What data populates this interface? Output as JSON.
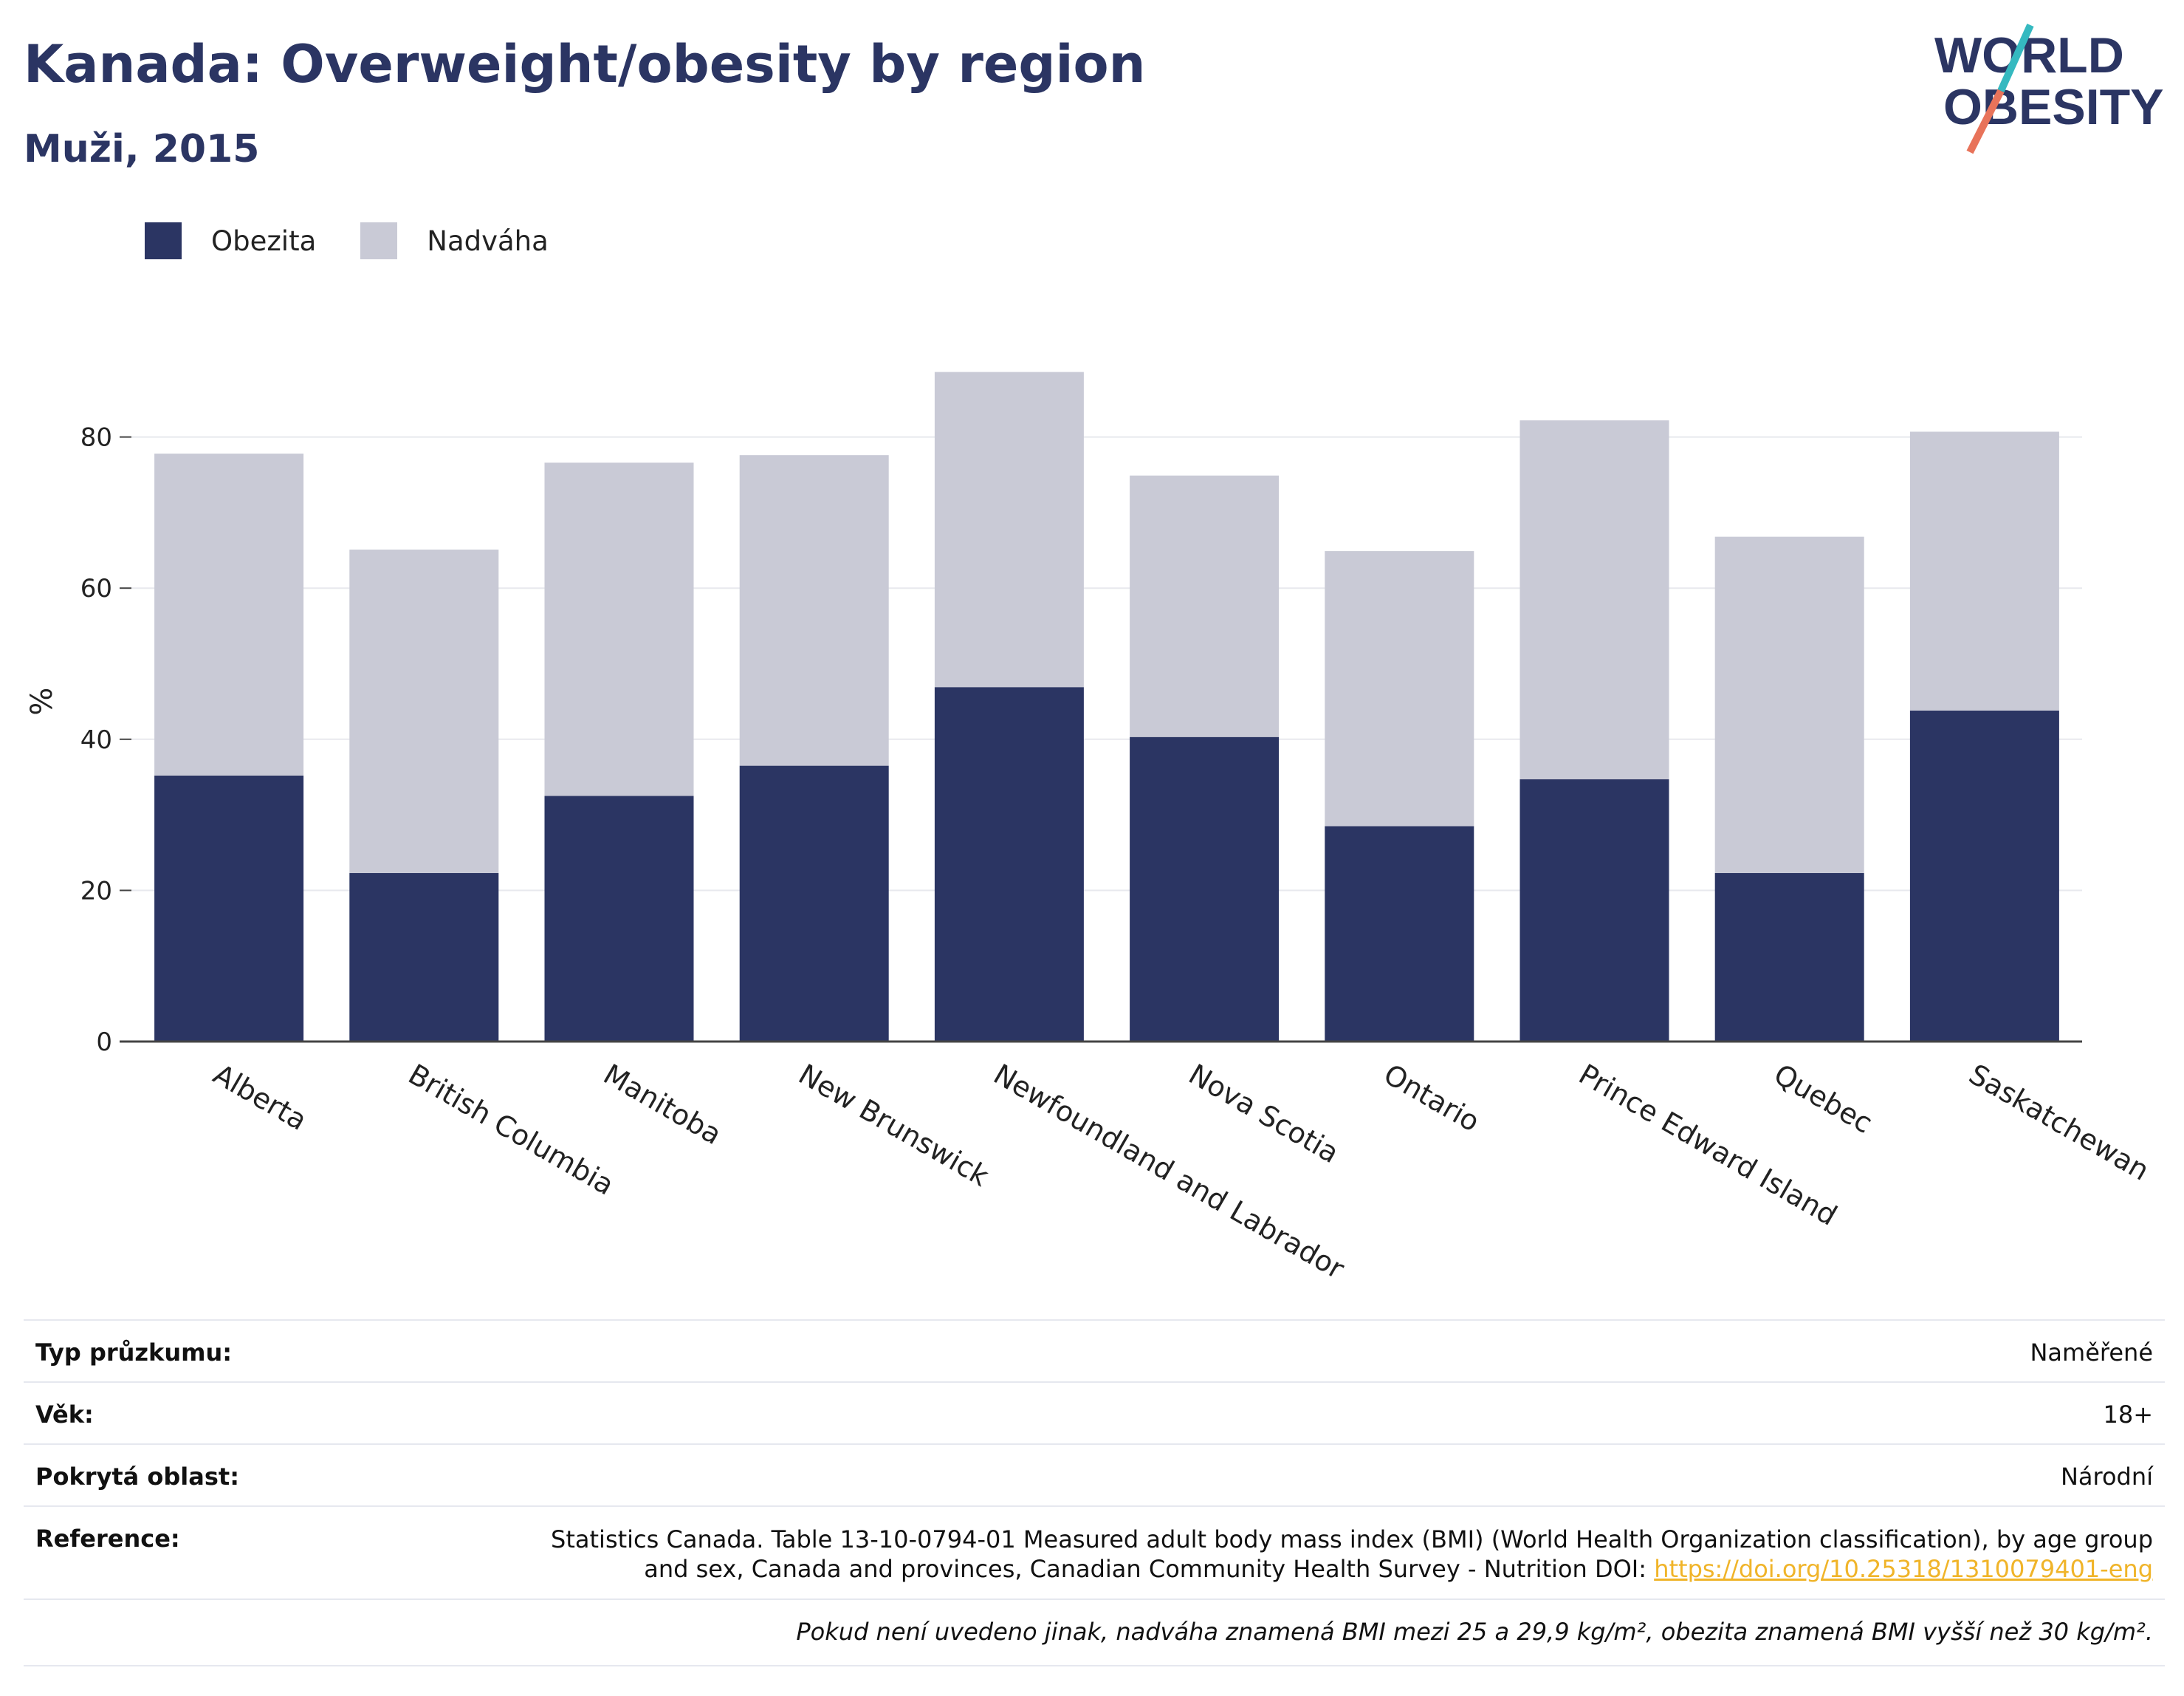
{
  "header": {
    "title": "Kanada: Overweight/obesity by region",
    "subtitle": "Muži, 2015",
    "logo_line1": "WORLD",
    "logo_line2": "OBESITY"
  },
  "legend": [
    {
      "label": "Obezita",
      "color": "#2b3563"
    },
    {
      "label": "Nadváha",
      "color": "#c9cad6"
    }
  ],
  "chart_data": {
    "type": "bar",
    "stacked": true,
    "categories": [
      "Alberta",
      "British Columbia",
      "Manitoba",
      "New Brunswick",
      "Newfoundland and Labrador",
      "Nova Scotia",
      "Ontario",
      "Prince Edward Island",
      "Quebec",
      "Saskatchewan"
    ],
    "series": [
      {
        "name": "Obezita",
        "color": "#2b3563",
        "values": [
          35.2,
          22.3,
          32.5,
          36.5,
          46.9,
          40.3,
          28.5,
          34.7,
          22.3,
          43.8
        ]
      },
      {
        "name": "Nadváha",
        "color": "#c9cad6",
        "values": [
          42.6,
          42.8,
          44.1,
          41.1,
          41.7,
          34.6,
          36.4,
          47.5,
          44.5,
          36.9
        ]
      }
    ],
    "ylabel": "%",
    "yticks": [
      0,
      20,
      40,
      60,
      80
    ],
    "ylim": [
      0,
      92
    ],
    "grid": true,
    "legend_position": "top-left"
  },
  "meta": {
    "rows": [
      {
        "key": "Typ průzkumu:",
        "value": "Naměřené"
      },
      {
        "key": "Věk:",
        "value": "18+"
      },
      {
        "key": "Pokrytá oblast:",
        "value": "Národní"
      }
    ],
    "reference_key": "Reference:",
    "reference_text": "Statistics Canada. Table 13-10-0794-01 Measured adult body mass index (BMI) (World Health Organization classification), by age group and sex, Canada and provinces, Canadian Community Health Survey - Nutrition DOI: ",
    "reference_link": "https://doi.org/10.25318/1310079401-eng",
    "footnote": "Pokud není uvedeno jinak, nadváha znamená BMI mezi 25 a 29,9 kg/m², obezita znamená BMI vyšší než 30 kg/m²."
  }
}
